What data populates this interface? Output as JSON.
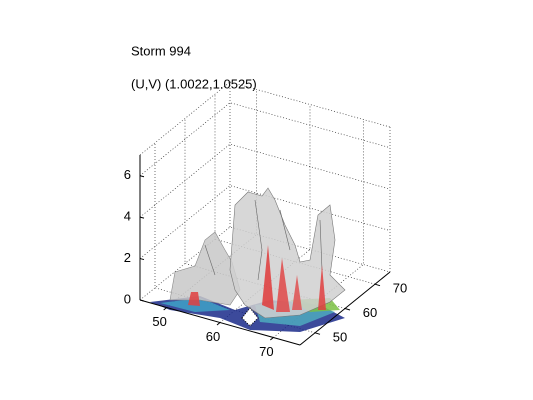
{
  "chart_data": {
    "type": "isosurface3d",
    "title": "Storm 994",
    "subtitle": "(U,V) (1.0022,1.0525)",
    "xlim": [
      45,
      75
    ],
    "ylim": [
      45,
      75
    ],
    "zlim": [
      0,
      7
    ],
    "xticks": [
      50,
      60,
      70
    ],
    "yticks": [
      50,
      60,
      70
    ],
    "zticks": [
      0,
      2,
      4,
      6
    ],
    "grid": true
  }
}
